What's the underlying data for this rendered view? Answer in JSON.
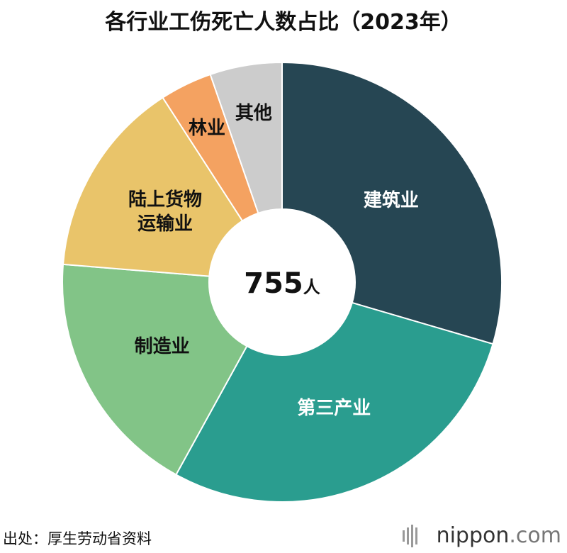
{
  "chart_data": {
    "type": "donut",
    "title": "各行业工伤死亡人数占比（2023年）",
    "categories": [
      "建筑业",
      "第三产业",
      "制造业",
      "陆上货物运输业",
      "林业",
      "其他"
    ],
    "values": [
      223,
      215,
      138,
      110,
      29,
      40
    ],
    "colors": [
      "#264653",
      "#2a9d8f",
      "#82c487",
      "#e9c46a",
      "#f4a261",
      "#cccccc"
    ],
    "label_colors": [
      "#ffffff",
      "#ffffff",
      "#111111",
      "#111111",
      "#111111",
      "#111111"
    ],
    "total": 755,
    "total_unit": "人",
    "source": "出处：厚生劳动省资料",
    "logo_main": "nippon",
    "logo_suffix": ".com"
  }
}
